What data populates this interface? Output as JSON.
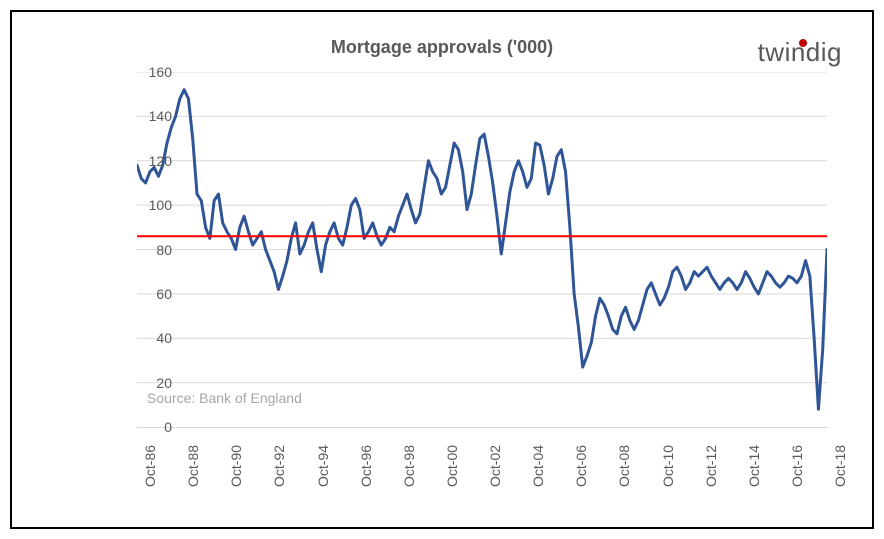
{
  "chart": {
    "type": "line",
    "title": "Mortgage approvals ('000)",
    "logo_text": "twindig",
    "source": "Source: Bank of England",
    "background_color": "#ffffff",
    "border_color": "#000000",
    "grid_color": "#d9d9d9",
    "text_color": "#595959",
    "source_color": "#a6a6a6",
    "title_fontsize": 18,
    "label_fontsize": 14,
    "ylim": [
      0,
      160
    ],
    "ytick_step": 20,
    "yticks": [
      0,
      20,
      40,
      60,
      80,
      100,
      120,
      140,
      160
    ],
    "x_labels": [
      "Oct-86",
      "Oct-88",
      "Oct-90",
      "Oct-92",
      "Oct-94",
      "Oct-96",
      "Oct-98",
      "Oct-00",
      "Oct-02",
      "Oct-04",
      "Oct-06",
      "Oct-08",
      "Oct-10",
      "Oct-12",
      "Oct-14",
      "Oct-16",
      "Oct-18"
    ],
    "reference_line": {
      "value": 86,
      "color": "#ff0000",
      "width": 2
    },
    "series": {
      "color": "#2f5597",
      "width": 3,
      "data": [
        118,
        112,
        110,
        115,
        117,
        113,
        118,
        128,
        135,
        140,
        148,
        152,
        148,
        130,
        105,
        102,
        90,
        85,
        102,
        105,
        92,
        88,
        85,
        80,
        90,
        95,
        88,
        82,
        85,
        88,
        80,
        75,
        70,
        62,
        68,
        75,
        85,
        92,
        78,
        82,
        88,
        92,
        80,
        70,
        82,
        88,
        92,
        85,
        82,
        90,
        100,
        103,
        98,
        85,
        88,
        92,
        86,
        82,
        85,
        90,
        88,
        95,
        100,
        105,
        98,
        92,
        96,
        108,
        120,
        115,
        112,
        105,
        108,
        118,
        128,
        125,
        115,
        98,
        105,
        118,
        130,
        132,
        122,
        110,
        95,
        78,
        92,
        106,
        115,
        120,
        115,
        108,
        112,
        128,
        127,
        118,
        105,
        112,
        122,
        125,
        115,
        90,
        60,
        45,
        27,
        32,
        38,
        50,
        58,
        55,
        50,
        44,
        42,
        50,
        54,
        48,
        44,
        48,
        55,
        62,
        65,
        60,
        55,
        58,
        63,
        70,
        72,
        68,
        62,
        65,
        70,
        68,
        70,
        72,
        68,
        65,
        62,
        65,
        67,
        65,
        62,
        65,
        70,
        67,
        63,
        60,
        65,
        70,
        68,
        65,
        63,
        65,
        68,
        67,
        65,
        68,
        75,
        68,
        40,
        8,
        35,
        80
      ]
    }
  }
}
